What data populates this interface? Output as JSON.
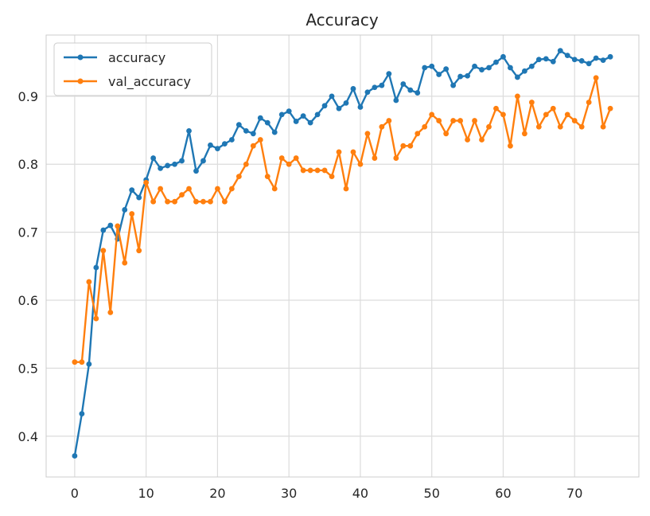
{
  "chart_data": {
    "type": "line",
    "title": "Accuracy",
    "xlabel": "",
    "ylabel": "",
    "xlim": [
      -4,
      79
    ],
    "ylim": [
      0.34,
      0.99
    ],
    "x_ticks": [
      0,
      10,
      20,
      30,
      40,
      50,
      60,
      70
    ],
    "y_ticks": [
      0.4,
      0.5,
      0.6,
      0.7,
      0.8,
      0.9
    ],
    "grid": true,
    "legend_position": "top-left",
    "marker": "circle",
    "series": [
      {
        "name": "accuracy",
        "color": "#1f77b4",
        "x_start": 0,
        "values": [
          0.371,
          0.433,
          0.506,
          0.648,
          0.703,
          0.71,
          0.69,
          0.733,
          0.762,
          0.751,
          0.777,
          0.809,
          0.794,
          0.798,
          0.8,
          0.805,
          0.849,
          0.79,
          0.805,
          0.828,
          0.823,
          0.83,
          0.836,
          0.858,
          0.849,
          0.845,
          0.868,
          0.861,
          0.847,
          0.873,
          0.878,
          0.863,
          0.871,
          0.861,
          0.873,
          0.886,
          0.9,
          0.882,
          0.89,
          0.911,
          0.884,
          0.906,
          0.913,
          0.916,
          0.933,
          0.894,
          0.918,
          0.909,
          0.905,
          0.942,
          0.944,
          0.932,
          0.94,
          0.916,
          0.929,
          0.93,
          0.944,
          0.939,
          0.942,
          0.95,
          0.958,
          0.942,
          0.928,
          0.937,
          0.944,
          0.954,
          0.955,
          0.951,
          0.967,
          0.96,
          0.954,
          0.952,
          0.948,
          0.956,
          0.953,
          0.958
        ]
      },
      {
        "name": "val_accuracy",
        "color": "#ff7f0e",
        "x_start": 0,
        "values": [
          0.509,
          0.509,
          0.627,
          0.573,
          0.673,
          0.582,
          0.709,
          0.655,
          0.727,
          0.673,
          0.773,
          0.745,
          0.764,
          0.745,
          0.745,
          0.755,
          0.764,
          0.745,
          0.745,
          0.745,
          0.764,
          0.745,
          0.764,
          0.782,
          0.8,
          0.827,
          0.836,
          0.782,
          0.764,
          0.809,
          0.8,
          0.809,
          0.791,
          0.791,
          0.791,
          0.791,
          0.782,
          0.818,
          0.764,
          0.818,
          0.8,
          0.845,
          0.809,
          0.855,
          0.864,
          0.809,
          0.827,
          0.827,
          0.845,
          0.855,
          0.873,
          0.864,
          0.845,
          0.864,
          0.864,
          0.836,
          0.864,
          0.836,
          0.855,
          0.882,
          0.873,
          0.827,
          0.9,
          0.845,
          0.891,
          0.855,
          0.873,
          0.882,
          0.855,
          0.873,
          0.864,
          0.855,
          0.891,
          0.927,
          0.855,
          0.882
        ]
      }
    ]
  }
}
